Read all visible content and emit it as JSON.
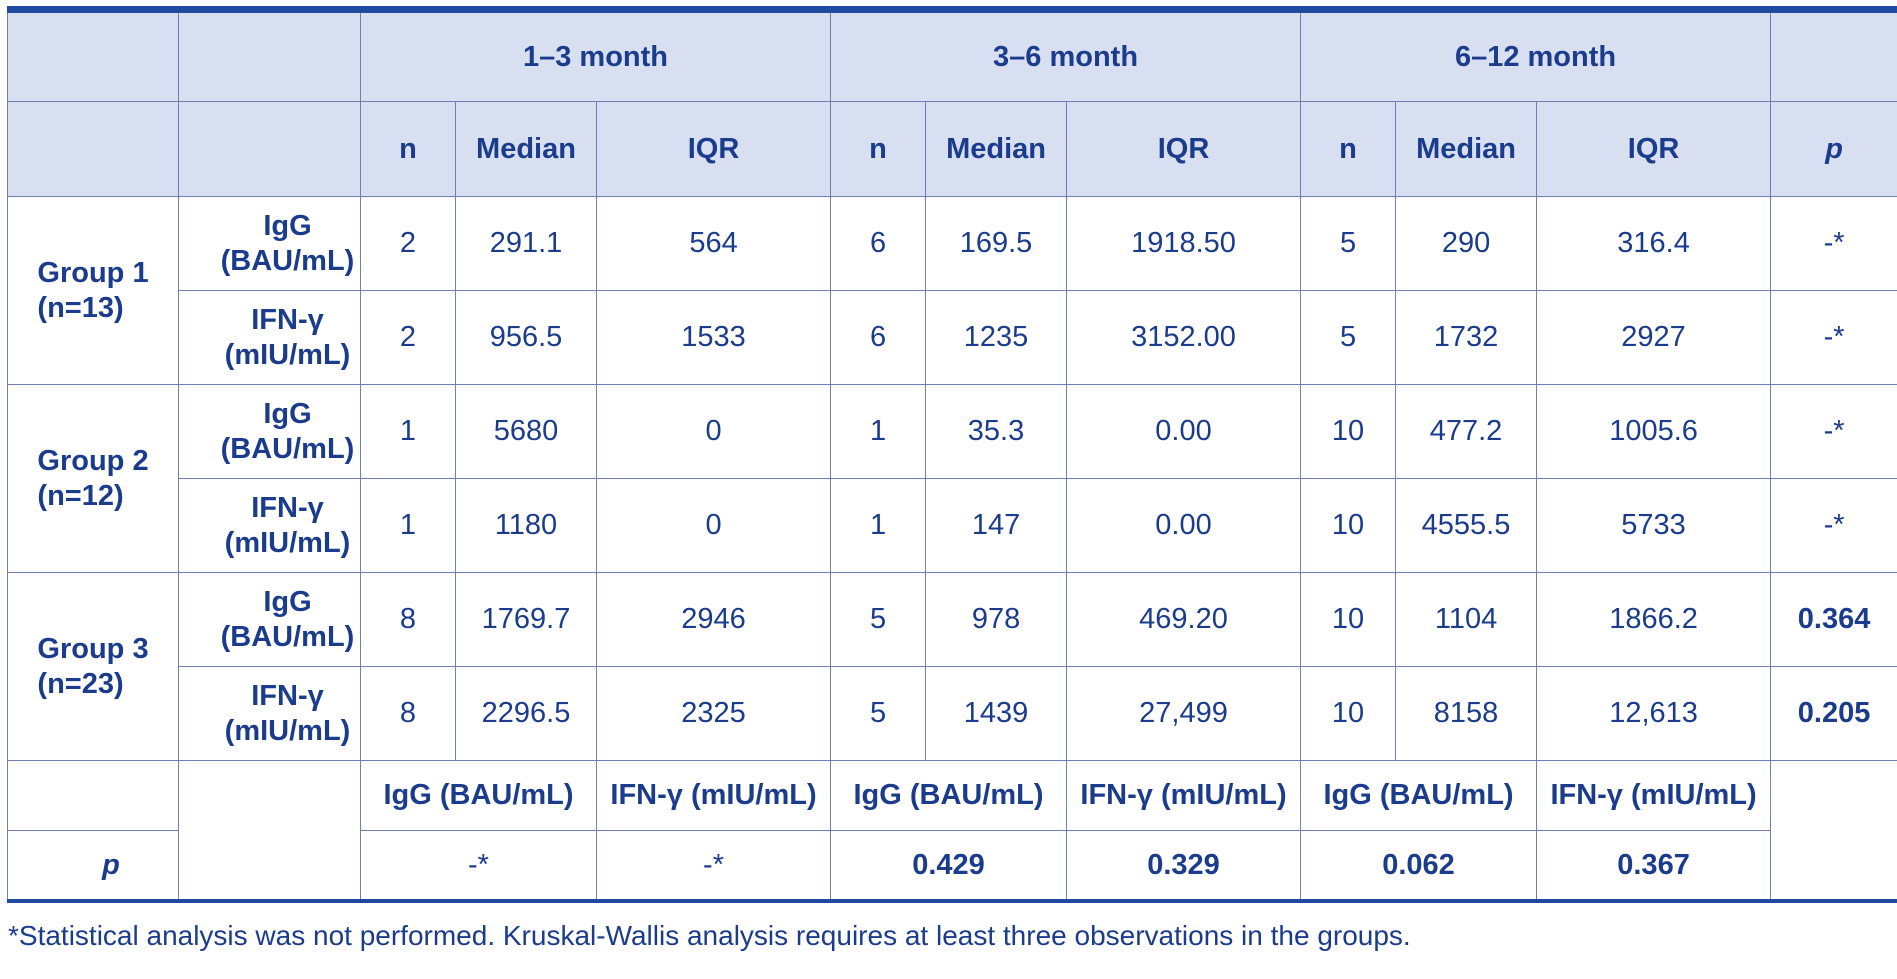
{
  "header": {
    "periods": [
      "1–3 month",
      "3–6 month",
      "6–12 month"
    ],
    "sub_cols": [
      "n",
      "Median",
      "IQR"
    ],
    "p_label": "p"
  },
  "groups": [
    {
      "name": "Group 1",
      "count": "(n=13)",
      "rows": [
        {
          "marker": "IgG",
          "unit": "(BAU/mL)",
          "cells": [
            "2",
            "291.1",
            "564",
            "6",
            "169.5",
            "1918.50",
            "5",
            "290",
            "316.4"
          ],
          "p": "-*"
        },
        {
          "marker": "IFN-γ",
          "unit": "(mIU/mL)",
          "cells": [
            "2",
            "956.5",
            "1533",
            "6",
            "1235",
            "3152.00",
            "5",
            "1732",
            "2927"
          ],
          "p": "-*"
        }
      ]
    },
    {
      "name": "Group 2",
      "count": "(n=12)",
      "rows": [
        {
          "marker": "IgG",
          "unit": "(BAU/mL)",
          "cells": [
            "1",
            "5680",
            "0",
            "1",
            "35.3",
            "0.00",
            "10",
            "477.2",
            "1005.6"
          ],
          "p": "-*"
        },
        {
          "marker": "IFN-γ",
          "unit": "(mIU/mL)",
          "cells": [
            "1",
            "1180",
            "0",
            "1",
            "147",
            "0.00",
            "10",
            "4555.5",
            "5733"
          ],
          "p": "-*"
        }
      ]
    },
    {
      "name": "Group 3",
      "count": "(n=23)",
      "rows": [
        {
          "marker": "IgG",
          "unit": "(BAU/mL)",
          "cells": [
            "8",
            "1769.7",
            "2946",
            "5",
            "978",
            "469.20",
            "10",
            "1104",
            "1866.2"
          ],
          "p": "0.364"
        },
        {
          "marker": "IFN-γ",
          "unit": "(mIU/mL)",
          "cells": [
            "8",
            "2296.5",
            "2325",
            "5",
            "1439",
            "27,499",
            "10",
            "8158",
            "12,613"
          ],
          "p": "0.205"
        }
      ]
    }
  ],
  "footer": {
    "labels": [
      "IgG (BAU/mL)",
      "IFN-γ (mIU/mL)",
      "IgG (BAU/mL)",
      "IFN-γ (mIU/mL)",
      "IgG (BAU/mL)",
      "IFN-γ (mIU/mL)"
    ],
    "p_label": "p",
    "p_values": [
      "-*",
      "-*",
      "0.429",
      "0.329",
      "0.062",
      "0.367"
    ]
  },
  "footnote": "*Statistical analysis was not performed. Kruskal-Wallis analysis requires at least three observations in the groups."
}
